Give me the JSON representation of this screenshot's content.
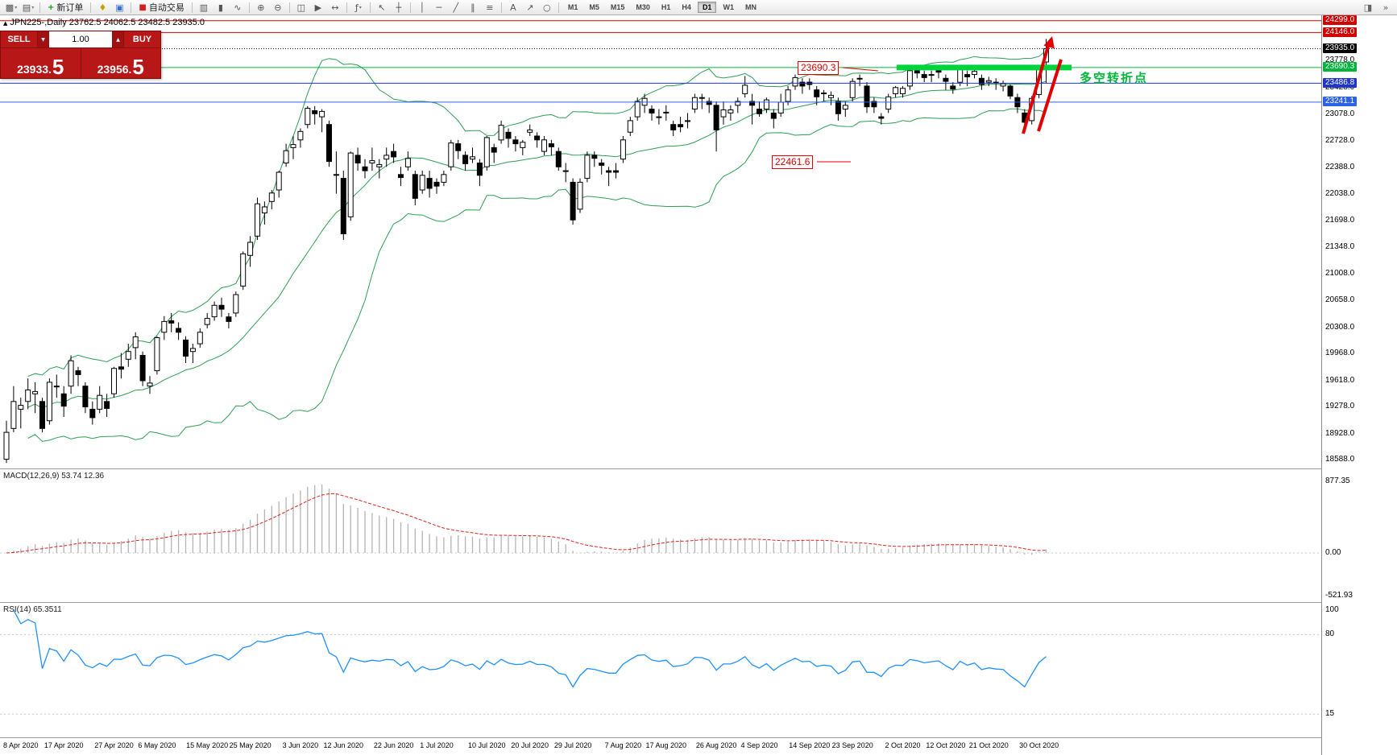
{
  "toolbar": {
    "dropdown_glyph": "▾",
    "new_order_label": "新订单",
    "auto_trading_label": "自动交易",
    "items": [
      {
        "t": "btn",
        "name": "new-chart-icon",
        "g": "▩",
        "dd": true
      },
      {
        "t": "btn",
        "name": "profiles-icon",
        "g": "▤",
        "dd": true
      },
      {
        "t": "sep"
      },
      {
        "t": "lbl",
        "name": "new-order-button",
        "icon": "new-order-icon",
        "g": "+",
        "gc": "#089e08",
        "label": "新订单"
      },
      {
        "t": "sep"
      },
      {
        "t": "btn",
        "name": "alerts-icon",
        "g": "♦",
        "gc": "#c8a000"
      },
      {
        "t": "btn",
        "name": "market-watch-icon",
        "g": "▣",
        "gc": "#3a6fd8"
      },
      {
        "t": "sep"
      },
      {
        "t": "lbl",
        "name": "auto-trading-button",
        "icon": "auto-trading-icon",
        "g": "■",
        "gc": "#d22020",
        "label": "自动交易"
      },
      {
        "t": "sep"
      },
      {
        "t": "btn",
        "name": "bar-chart-icon",
        "g": "▥"
      },
      {
        "t": "btn",
        "name": "candlestick-chart-icon",
        "g": "▮"
      },
      {
        "t": "btn",
        "name": "line-chart-icon",
        "g": "∿"
      },
      {
        "t": "sep"
      },
      {
        "t": "btn",
        "name": "zoom-in-icon",
        "g": "⊕"
      },
      {
        "t": "btn",
        "name": "zoom-out-icon",
        "g": "⊖"
      },
      {
        "t": "sep"
      },
      {
        "t": "btn",
        "name": "tile-windows-icon",
        "g": "◫"
      },
      {
        "t": "btn",
        "name": "auto-scroll-icon",
        "g": "▶"
      },
      {
        "t": "btn",
        "name": "chart-shift-icon",
        "g": "↔"
      },
      {
        "t": "sep"
      },
      {
        "t": "btn",
        "name": "indicators-icon",
        "g": "ƒ",
        "dd": true
      },
      {
        "t": "sep"
      },
      {
        "t": "btn",
        "name": "cursor-icon",
        "g": "↖"
      },
      {
        "t": "btn",
        "name": "crosshair-icon",
        "g": "┼"
      },
      {
        "t": "sep"
      },
      {
        "t": "btn",
        "name": "vertical-line-icon",
        "g": "│"
      },
      {
        "t": "btn",
        "name": "horizontal-line-icon",
        "g": "─"
      },
      {
        "t": "btn",
        "name": "trendline-icon",
        "g": "╱"
      },
      {
        "t": "btn",
        "name": "channel-icon",
        "g": "∥"
      },
      {
        "t": "btn",
        "name": "fibonacci-icon",
        "g": "≡"
      },
      {
        "t": "sep"
      },
      {
        "t": "btn",
        "name": "text-label-icon",
        "g": "A"
      },
      {
        "t": "btn",
        "name": "arrow-tool-icon",
        "g": "↗"
      },
      {
        "t": "btn",
        "name": "shapes-icon",
        "g": "○"
      },
      {
        "t": "sep"
      }
    ],
    "timeframes": [
      "M1",
      "M5",
      "M15",
      "M30",
      "H1",
      "H4",
      "D1",
      "W1",
      "MN"
    ],
    "active_timeframe": "D1",
    "right_items": [
      {
        "name": "panel-layout-icon",
        "g": "◨"
      },
      {
        "name": "toolbar-more-icon",
        "g": "»"
      }
    ]
  },
  "trade_panel": {
    "sell_label": "SELL",
    "buy_label": "BUY",
    "volume": "1.00",
    "sell_price_main": "23933.",
    "sell_price_big": "5",
    "buy_price_main": "23956.",
    "buy_price_big": "5",
    "down_glyph": "▼",
    "up_glyph": "▲"
  },
  "chart": {
    "header": "JPN225-,Daily 23762.5 24062.5 23482.5 23935.0",
    "icon_glyph": "▲",
    "annotations": {
      "resistance_price": "23690.3",
      "support_price": "22461.6",
      "note": "多空转折点",
      "note_color": "#00b43c",
      "annotation_color": "#e00000"
    },
    "price_scale": {
      "special": [
        {
          "text": "24299.0",
          "value": 24299.0,
          "color": "#d20000",
          "line": "solid"
        },
        {
          "text": "24146.0",
          "value": 24146.0,
          "color": "#d20000",
          "line": "solid"
        },
        {
          "text": "23935.0",
          "value": 23935.0,
          "color": "#000000",
          "line": "dotted"
        },
        {
          "text": "23690.3",
          "value": 23690.3,
          "color": "#00b43c",
          "line": "solid"
        },
        {
          "text": "23486.8",
          "value": 23486.8,
          "color": "#2036c8",
          "line": "solid"
        },
        {
          "text": "23241.1",
          "value": 23241.1,
          "color": "#2d62e8",
          "line": "solid"
        }
      ],
      "ticks": [
        {
          "text": "23778.0",
          "value": 23778
        },
        {
          "text": "23428.0",
          "value": 23428
        },
        {
          "text": "23078.0",
          "value": 23078
        },
        {
          "text": "22728.0",
          "value": 22728
        },
        {
          "text": "22388.0",
          "value": 22388
        },
        {
          "text": "22038.0",
          "value": 22038
        },
        {
          "text": "21698.0",
          "value": 21698
        },
        {
          "text": "21348.0",
          "value": 21348
        },
        {
          "text": "21008.0",
          "value": 21008
        },
        {
          "text": "20658.0",
          "value": 20658
        },
        {
          "text": "20308.0",
          "value": 20308
        },
        {
          "text": "19968.0",
          "value": 19968
        },
        {
          "text": "19618.0",
          "value": 19618
        },
        {
          "text": "19278.0",
          "value": 19278
        },
        {
          "text": "18928.0",
          "value": 18928
        },
        {
          "text": "18588.0",
          "value": 18588
        }
      ]
    },
    "band": {
      "value": 23690.3,
      "color": "#00d43c"
    },
    "colors": {
      "bollinger": "#2e9e55",
      "bull": "#ffffff",
      "bear": "#000000",
      "outline": "#000000"
    },
    "time_axis": [
      {
        "t": "8 Apr 2020",
        "i": 2
      },
      {
        "t": "17 Apr 2020",
        "i": 8
      },
      {
        "t": "27 Apr 2020",
        "i": 15
      },
      {
        "t": "6 May 2020",
        "i": 21
      },
      {
        "t": "15 May 2020",
        "i": 28
      },
      {
        "t": "25 May 2020",
        "i": 34
      },
      {
        "t": "3 Jun 2020",
        "i": 41
      },
      {
        "t": "12 Jun 2020",
        "i": 47
      },
      {
        "t": "22 Jun 2020",
        "i": 54
      },
      {
        "t": "1 Jul 2020",
        "i": 60
      },
      {
        "t": "10 Jul 2020",
        "i": 67
      },
      {
        "t": "20 Jul 2020",
        "i": 73
      },
      {
        "t": "29 Jul 2020",
        "i": 79
      },
      {
        "t": "7 Aug 2020",
        "i": 86
      },
      {
        "t": "17 Aug 2020",
        "i": 92
      },
      {
        "t": "26 Aug 2020",
        "i": 99
      },
      {
        "t": "4 Sep 2020",
        "i": 105
      },
      {
        "t": "14 Sep 2020",
        "i": 112
      },
      {
        "t": "23 Sep 2020",
        "i": 118
      },
      {
        "t": "2 Oct 2020",
        "i": 125
      },
      {
        "t": "12 Oct 2020",
        "i": 131
      },
      {
        "t": "21 Oct 2020",
        "i": 137
      },
      {
        "t": "30 Oct 2020",
        "i": 144
      }
    ]
  },
  "macd": {
    "label": "MACD(12,26,9) 53.74 12.36",
    "scale": [
      {
        "text": "877.35",
        "value": 877.35
      },
      {
        "text": "0.00",
        "value": 0
      },
      {
        "text": "-521.93",
        "value": -521.93
      }
    ],
    "histogram_color": "#b4b4b4",
    "signal_color": "#e02020"
  },
  "rsi": {
    "label": "RSI(14) 65.3511",
    "scale": [
      {
        "text": "100",
        "value": 100
      },
      {
        "text": "80",
        "value": 80
      },
      {
        "text": "15",
        "value": 15
      }
    ],
    "levels": [
      80,
      15
    ],
    "line_color": "#1e90ff"
  },
  "chart_data": {
    "type": "candlestick",
    "symbol": "JPN225-",
    "timeframe": "Daily",
    "current_ohlc": {
      "open": 23762.5,
      "high": 24062.5,
      "low": 23482.5,
      "close": 23935.0
    },
    "indicators": {
      "bollinger_period": 20,
      "bollinger_deviation": 2,
      "macd": "12,26,9",
      "rsi_period": 14
    },
    "candles": [
      [
        18600,
        19100,
        18550,
        18950
      ],
      [
        19000,
        19550,
        18950,
        19350
      ],
      [
        19250,
        19400,
        19000,
        19300
      ],
      [
        19350,
        19650,
        19250,
        19500
      ],
      [
        19450,
        19600,
        19200,
        19480
      ],
      [
        19350,
        19400,
        18950,
        19000
      ],
      [
        19100,
        19650,
        19050,
        19600
      ],
      [
        19550,
        19700,
        19400,
        19550
      ],
      [
        19450,
        19550,
        19150,
        19290
      ],
      [
        19550,
        19950,
        19450,
        19880
      ],
      [
        19750,
        19800,
        19550,
        19700
      ],
      [
        19550,
        19600,
        19200,
        19280
      ],
      [
        19250,
        19350,
        19050,
        19140
      ],
      [
        19250,
        19550,
        19200,
        19430
      ],
      [
        19350,
        19450,
        19150,
        19260
      ],
      [
        19450,
        19800,
        19400,
        19780
      ],
      [
        19800,
        19980,
        19650,
        19770
      ],
      [
        19900,
        20100,
        19800,
        20000
      ],
      [
        20050,
        20250,
        19900,
        20190
      ],
      [
        19950,
        20000,
        19550,
        19620
      ],
      [
        19550,
        19680,
        19450,
        19590
      ],
      [
        19750,
        20200,
        19700,
        20180
      ],
      [
        20250,
        20460,
        20150,
        20390
      ],
      [
        20400,
        20500,
        20250,
        20370
      ],
      [
        20300,
        20380,
        20150,
        20250
      ],
      [
        20150,
        20200,
        19850,
        19940
      ],
      [
        20000,
        20100,
        19850,
        20040
      ],
      [
        20100,
        20300,
        20050,
        20250
      ],
      [
        20350,
        20500,
        20300,
        20430
      ],
      [
        20450,
        20650,
        20400,
        20600
      ],
      [
        20600,
        20700,
        20450,
        20550
      ],
      [
        20450,
        20500,
        20300,
        20390
      ],
      [
        20500,
        20780,
        20450,
        20740
      ],
      [
        20850,
        21300,
        20800,
        21270
      ],
      [
        21250,
        21500,
        21100,
        21420
      ],
      [
        21500,
        22000,
        21450,
        21920
      ],
      [
        21800,
        21950,
        21650,
        21880
      ],
      [
        21950,
        22100,
        21850,
        22060
      ],
      [
        22100,
        22350,
        22000,
        22330
      ],
      [
        22450,
        22700,
        22400,
        22610
      ],
      [
        22650,
        22800,
        22500,
        22690
      ],
      [
        22750,
        22900,
        22650,
        22860
      ],
      [
        22950,
        23190,
        22900,
        23160
      ],
      [
        23130,
        23190,
        22950,
        23090
      ],
      [
        23050,
        23150,
        22850,
        23120
      ],
      [
        22950,
        23000,
        22400,
        22470
      ],
      [
        22300,
        22600,
        22050,
        22300
      ],
      [
        22250,
        22350,
        21450,
        21530
      ],
      [
        21750,
        22600,
        21700,
        22580
      ],
      [
        22550,
        22650,
        22350,
        22450
      ],
      [
        22400,
        22500,
        22250,
        22350
      ],
      [
        22450,
        22650,
        22350,
        22480
      ],
      [
        22400,
        22500,
        22250,
        22430
      ],
      [
        22500,
        22650,
        22400,
        22550
      ],
      [
        22600,
        22700,
        22450,
        22530
      ],
      [
        22300,
        22400,
        22150,
        22260
      ],
      [
        22400,
        22600,
        22350,
        22510
      ],
      [
        22300,
        22350,
        21900,
        21990
      ],
      [
        22100,
        22350,
        22050,
        22290
      ],
      [
        22250,
        22350,
        22000,
        22120
      ],
      [
        22200,
        22250,
        22050,
        22150
      ],
      [
        22200,
        22350,
        22150,
        22300
      ],
      [
        22400,
        22750,
        22350,
        22710
      ],
      [
        22700,
        22750,
        22500,
        22610
      ],
      [
        22550,
        22600,
        22350,
        22440
      ],
      [
        22500,
        22650,
        22450,
        22530
      ],
      [
        22450,
        22500,
        22150,
        22290
      ],
      [
        22400,
        22800,
        22350,
        22780
      ],
      [
        22650,
        22700,
        22450,
        22590
      ],
      [
        22750,
        23000,
        22700,
        22940
      ],
      [
        22850,
        22900,
        22650,
        22770
      ],
      [
        22750,
        22800,
        22600,
        22700
      ],
      [
        22650,
        22750,
        22550,
        22720
      ],
      [
        22850,
        22950,
        22800,
        22880
      ],
      [
        22800,
        22850,
        22650,
        22750
      ],
      [
        22600,
        22800,
        22550,
        22750
      ],
      [
        22700,
        22750,
        22550,
        22660
      ],
      [
        22600,
        22650,
        22350,
        22400
      ],
      [
        22350,
        22450,
        22200,
        22340
      ],
      [
        22200,
        22250,
        21650,
        21710
      ],
      [
        21850,
        22250,
        21800,
        22200
      ],
      [
        22250,
        22600,
        22200,
        22550
      ],
      [
        22550,
        22600,
        22400,
        22510
      ],
      [
        22450,
        22500,
        22300,
        22420
      ],
      [
        22350,
        22400,
        22150,
        22330
      ],
      [
        22350,
        22450,
        22250,
        22330
      ],
      [
        22500,
        22800,
        22450,
        22750
      ],
      [
        22850,
        23050,
        22800,
        23000
      ],
      [
        23050,
        23300,
        23000,
        23250
      ],
      [
        23200,
        23350,
        23100,
        23290
      ],
      [
        23150,
        23200,
        23000,
        23100
      ],
      [
        23050,
        23150,
        22950,
        23050
      ],
      [
        23100,
        23200,
        23000,
        23110
      ],
      [
        22950,
        23000,
        22800,
        22880
      ],
      [
        22950,
        23050,
        22850,
        22920
      ],
      [
        23000,
        23100,
        22900,
        23000
      ],
      [
        23150,
        23350,
        23100,
        23300
      ],
      [
        23300,
        23350,
        23150,
        23290
      ],
      [
        23250,
        23300,
        23100,
        23210
      ],
      [
        23200,
        23250,
        22600,
        22880
      ],
      [
        23050,
        23250,
        22950,
        23140
      ],
      [
        23100,
        23200,
        23000,
        23140
      ],
      [
        23200,
        23300,
        23100,
        23250
      ],
      [
        23350,
        23580,
        23300,
        23460
      ],
      [
        23250,
        23350,
        22950,
        23200
      ],
      [
        23150,
        23250,
        23050,
        23090
      ],
      [
        23150,
        23300,
        23100,
        23270
      ],
      [
        23100,
        23150,
        22900,
        23030
      ],
      [
        23100,
        23350,
        23050,
        23240
      ],
      [
        23250,
        23450,
        23200,
        23400
      ],
      [
        23450,
        23600,
        23400,
        23560
      ],
      [
        23500,
        23550,
        23350,
        23450
      ],
      [
        23500,
        23550,
        23400,
        23470
      ],
      [
        23400,
        23450,
        23200,
        23310
      ],
      [
        23350,
        23400,
        23250,
        23360
      ],
      [
        23300,
        23380,
        23200,
        23330
      ],
      [
        23250,
        23300,
        23000,
        23090
      ],
      [
        23150,
        23250,
        23050,
        23200
      ],
      [
        23300,
        23550,
        23250,
        23510
      ],
      [
        23550,
        23600,
        23450,
        23540
      ],
      [
        23450,
        23500,
        23100,
        23180
      ],
      [
        23250,
        23300,
        23100,
        23180
      ],
      [
        23050,
        23100,
        22950,
        23030
      ],
      [
        23150,
        23350,
        23100,
        23310
      ],
      [
        23350,
        23450,
        23300,
        23430
      ],
      [
        23350,
        23450,
        23300,
        23420
      ],
      [
        23450,
        23700,
        23400,
        23650
      ],
      [
        23650,
        23700,
        23550,
        23620
      ],
      [
        23600,
        23650,
        23500,
        23560
      ],
      [
        23600,
        23650,
        23500,
        23600
      ],
      [
        23650,
        23700,
        23550,
        23630
      ],
      [
        23550,
        23600,
        23400,
        23510
      ],
      [
        23450,
        23500,
        23350,
        23410
      ],
      [
        23500,
        23700,
        23450,
        23670
      ],
      [
        23600,
        23650,
        23450,
        23570
      ],
      [
        23600,
        23690,
        23550,
        23640
      ],
      [
        23550,
        23600,
        23400,
        23470
      ],
      [
        23500,
        23570,
        23450,
        23520
      ],
      [
        23500,
        23550,
        23400,
        23490
      ],
      [
        23450,
        23520,
        23380,
        23480
      ],
      [
        23450,
        23470,
        23280,
        23320
      ],
      [
        23300,
        23350,
        23100,
        23180
      ],
      [
        23100,
        23150,
        22950,
        22980
      ],
      [
        23000,
        23320,
        22950,
        23290
      ],
      [
        23340,
        23700,
        23290,
        23680
      ],
      [
        23762.5,
        24062.5,
        23482.5,
        23935
      ]
    ]
  }
}
